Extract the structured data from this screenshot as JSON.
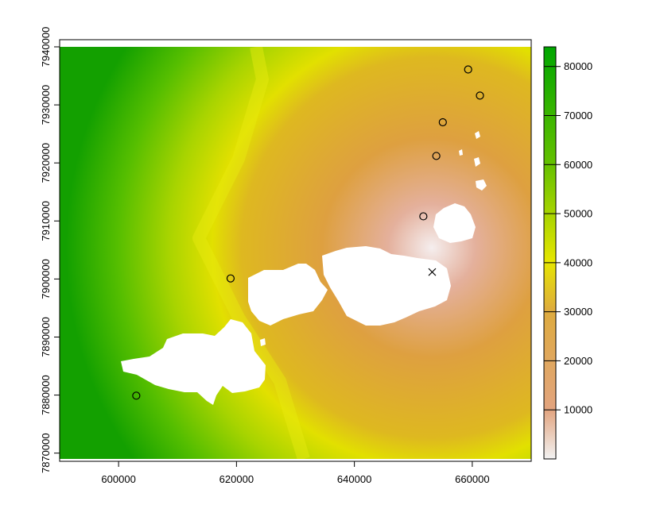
{
  "map": {
    "type": "raster-map",
    "x_axis": {
      "range": [
        590000,
        670000
      ],
      "ticks": [
        600000,
        620000,
        640000,
        660000
      ],
      "tick_labels": [
        "600000",
        "620000",
        "640000",
        "660000"
      ]
    },
    "y_axis": {
      "range": [
        7869000,
        7940000
      ],
      "ticks": [
        7870000,
        7880000,
        7890000,
        7900000,
        7910000,
        7920000,
        7930000,
        7940000
      ],
      "tick_labels": [
        "7870000",
        "7880000",
        "7890000",
        "7900000",
        "7910000",
        "7920000",
        "7930000",
        "7940000"
      ]
    },
    "legend": {
      "range": [
        0,
        84000
      ],
      "ticks": [
        10000,
        20000,
        30000,
        40000,
        50000,
        60000,
        70000,
        80000
      ],
      "tick_labels": [
        "10000",
        "20000",
        "30000",
        "40000",
        "50000",
        "60000",
        "70000",
        "80000"
      ],
      "colors": [
        "#f2f2f2",
        "#e2a47f",
        "#deab3e",
        "#e6e600",
        "#63c000",
        "#00a600"
      ]
    },
    "points_circle": [
      {
        "x": 659300,
        "y": 7936100
      },
      {
        "x": 661300,
        "y": 7931600
      },
      {
        "x": 655000,
        "y": 7927000
      },
      {
        "x": 653900,
        "y": 7921200
      },
      {
        "x": 651700,
        "y": 7910800
      },
      {
        "x": 619000,
        "y": 7900100
      },
      {
        "x": 603000,
        "y": 7879900
      }
    ],
    "point_cross": {
      "x": 653200,
      "y": 7901200
    },
    "land_color": "#ffffff"
  }
}
